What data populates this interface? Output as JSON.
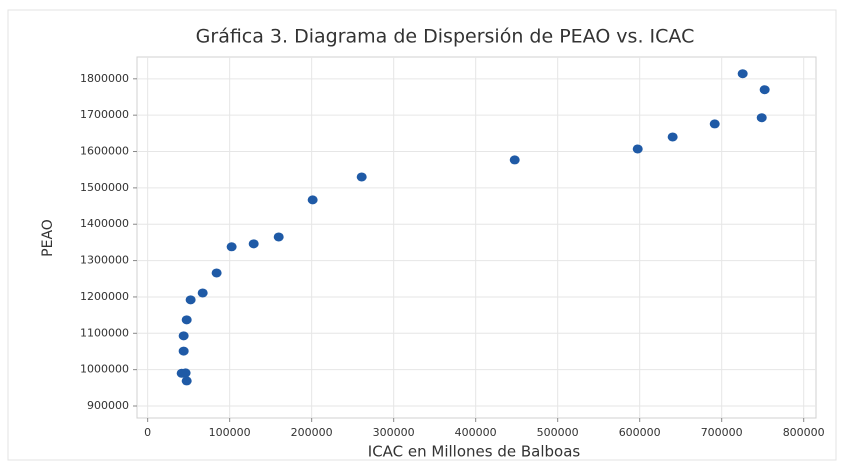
{
  "chart_data": {
    "type": "scatter",
    "title": "Gráfica 3. Diagrama de Dispersión de PEAO vs. ICAC",
    "x_label": "ICAC en Millones de Balboas",
    "y_label": "PEAO",
    "color": "#1f5aa6",
    "grid": true,
    "xlim": [
      -13000,
      815000
    ],
    "ylim": [
      867000,
      1860000
    ],
    "xticks": [
      0,
      100000,
      200000,
      300000,
      400000,
      500000,
      600000,
      700000,
      800000
    ],
    "yticks": [
      900000,
      1000000,
      1100000,
      1200000,
      1300000,
      1400000,
      1500000,
      1600000,
      1700000,
      1800000
    ],
    "x": [
      725600,
      752400,
      691500,
      748800,
      640200,
      597600,
      447600,
      261000,
      201200,
      159800,
      129300,
      102400,
      84100,
      67100,
      52400,
      47600,
      43900,
      43900,
      46300,
      41500,
      47600
    ],
    "values": [
      1814000,
      1770000,
      1676000,
      1693000,
      1640000,
      1607000,
      1577000,
      1530000,
      1467000,
      1365000,
      1346000,
      1338000,
      1266000,
      1211000,
      1192000,
      1137000,
      1093000,
      1051000,
      991000,
      990000,
      969000
    ]
  }
}
